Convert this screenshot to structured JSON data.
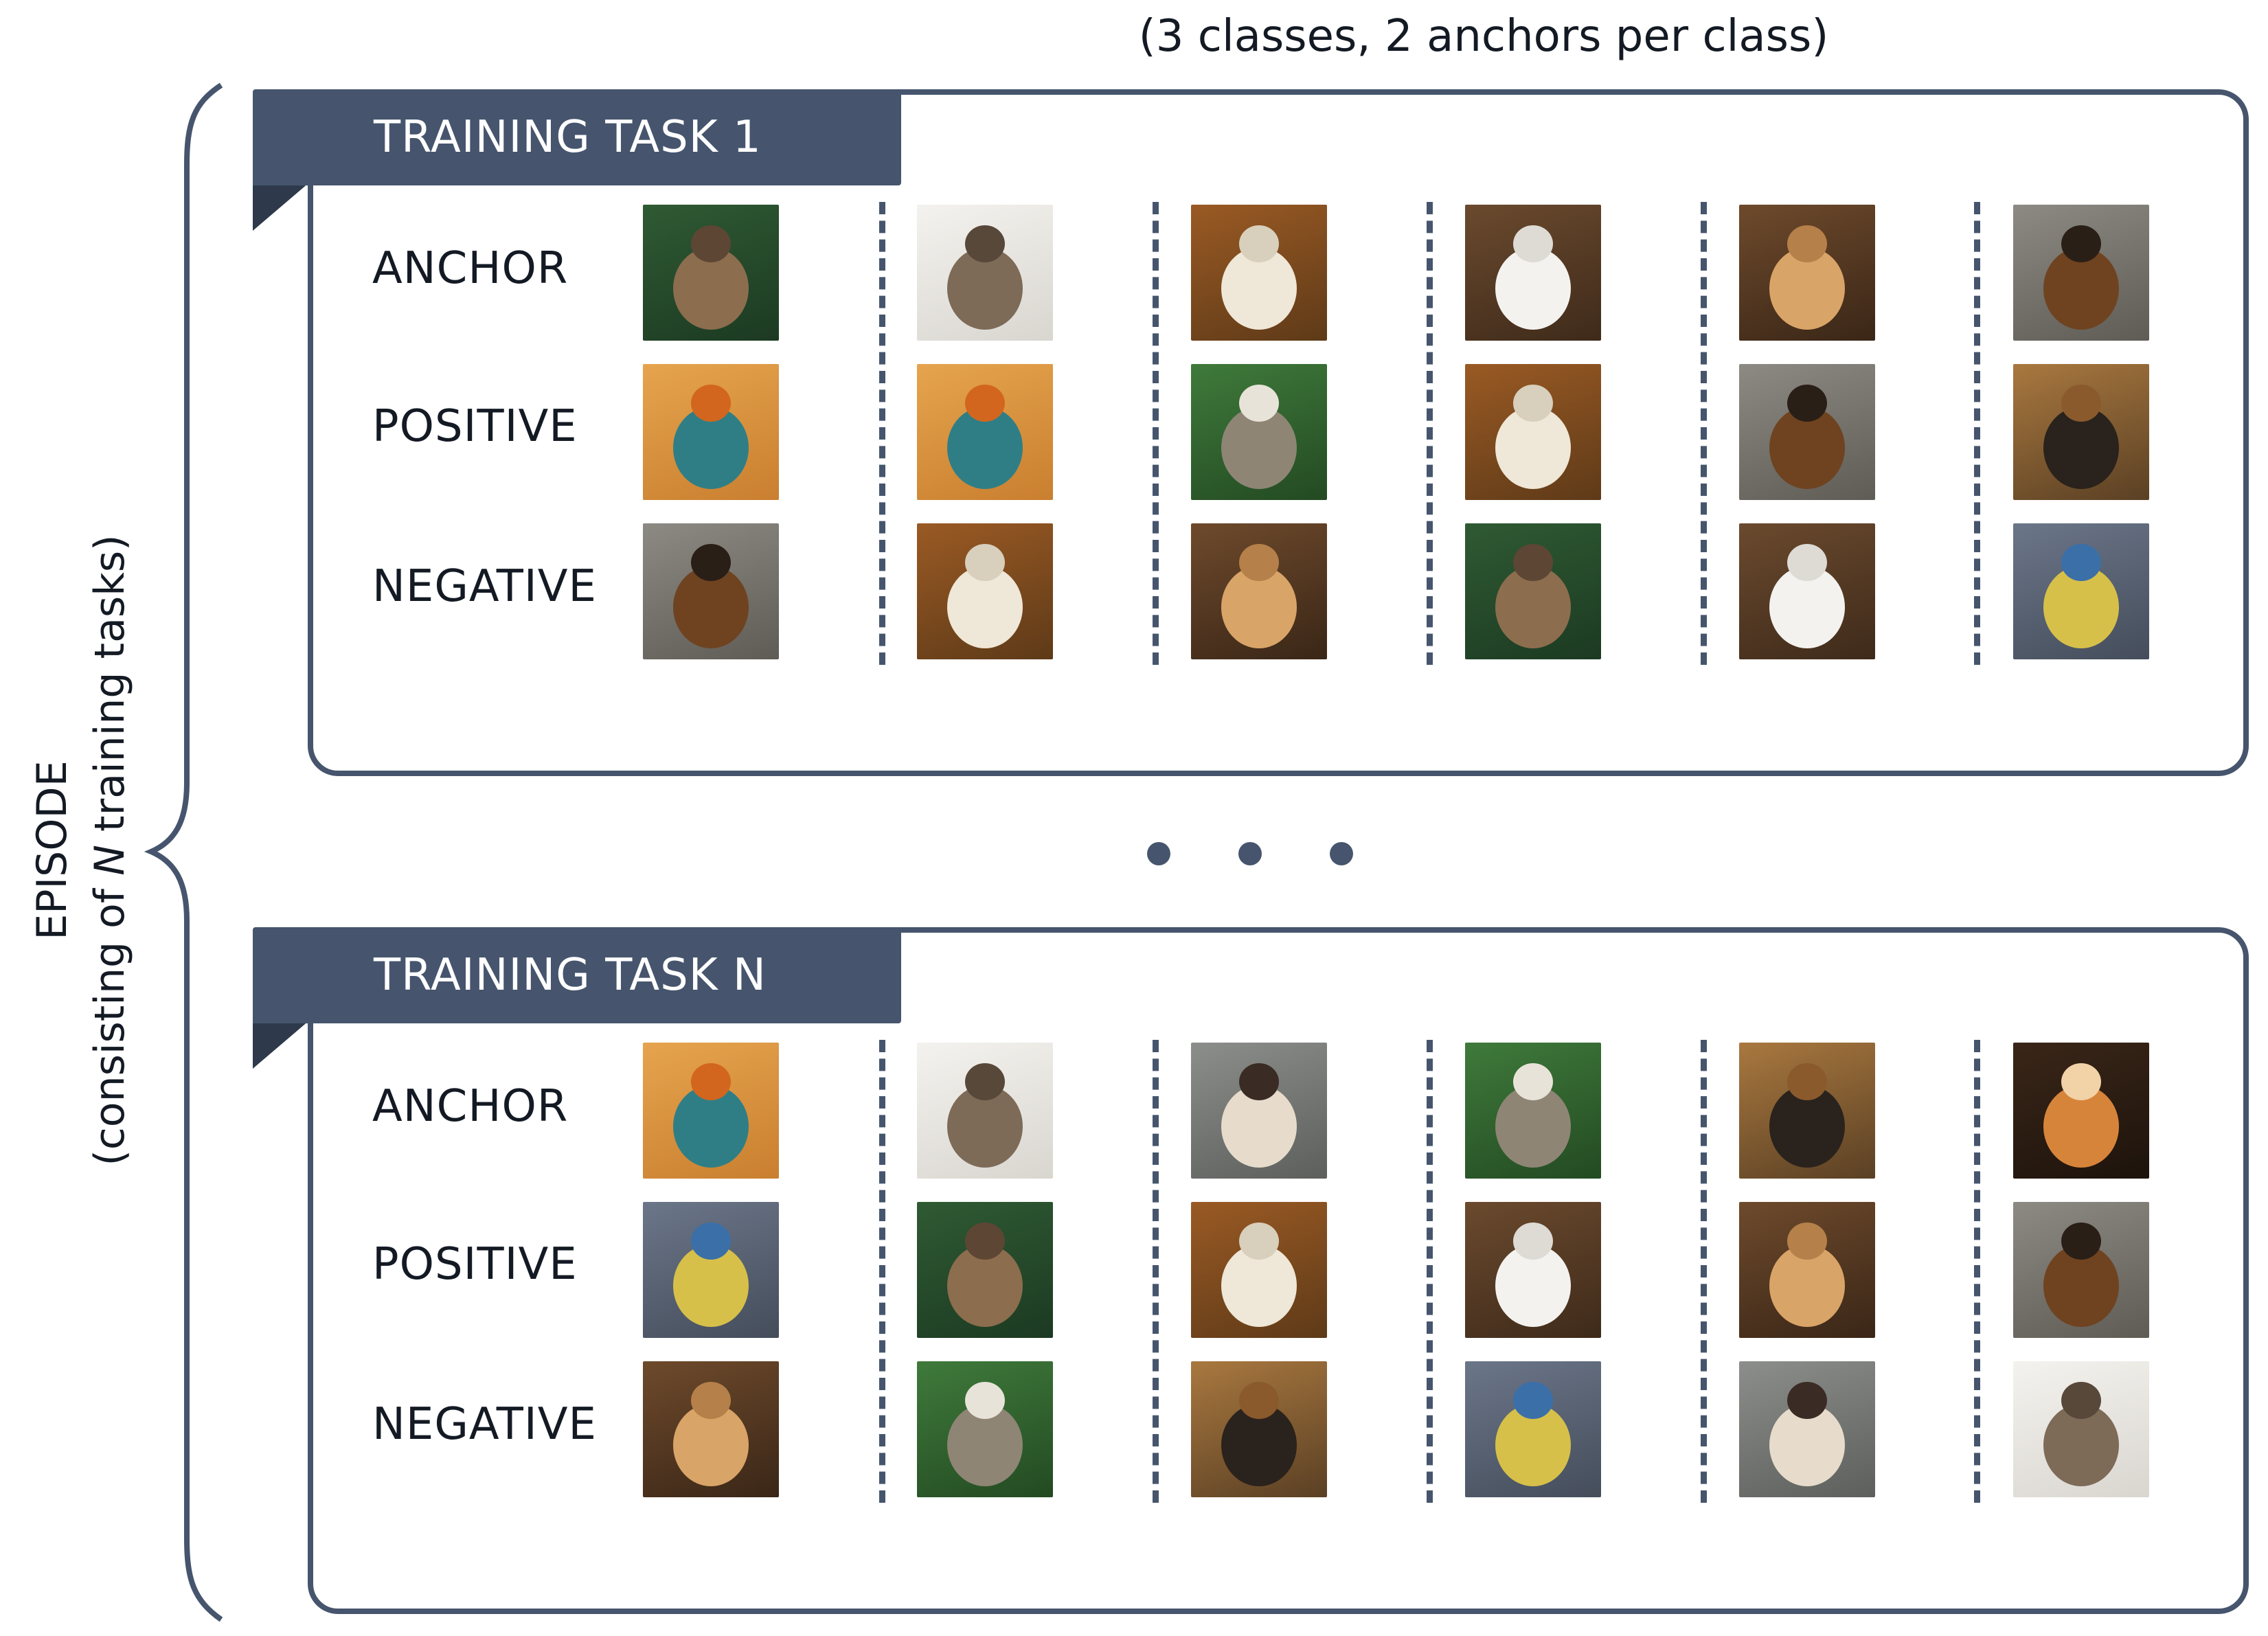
{
  "caption": "(3 classes, 2 anchors per class)",
  "episode": {
    "title": "EPISODE",
    "subtitle_prefix": "(consisting of ",
    "subtitle_var": "N",
    "subtitle_suffix": " training tasks)"
  },
  "row_labels": [
    "ANCHOR",
    "POSITIVE",
    "NEGATIVE"
  ],
  "tasks": [
    {
      "title": "TRAINING TASK 1",
      "grid": [
        [
          "sparrow",
          "wren",
          "white-cat-autumn",
          "white-cat-leaves",
          "golden-retriever",
          "german-shepherd"
        ],
        [
          "kingfisher",
          "kingfisher",
          "tabby-cat",
          "white-cat-autumn",
          "german-shepherd",
          "rottweiler"
        ],
        [
          "german-shepherd",
          "white-cat-autumn",
          "golden-retriever",
          "sparrow",
          "white-cat-leaves",
          "blue-tit"
        ]
      ]
    },
    {
      "title": "TRAINING TASK N",
      "grid": [
        [
          "kingfisher",
          "wren",
          "siamese-cat",
          "tabby-cat",
          "rottweiler",
          "shiba-inu"
        ],
        [
          "blue-tit",
          "sparrow",
          "white-cat-autumn",
          "white-cat-leaves",
          "golden-retriever",
          "german-shepherd"
        ],
        [
          "golden-retriever",
          "tabby-cat",
          "rottweiler",
          "blue-tit",
          "siamese-cat",
          "wren"
        ]
      ]
    }
  ],
  "colors": {
    "accent": "#46556d",
    "accent_dark": "#2e394b",
    "text": "#141a24"
  }
}
